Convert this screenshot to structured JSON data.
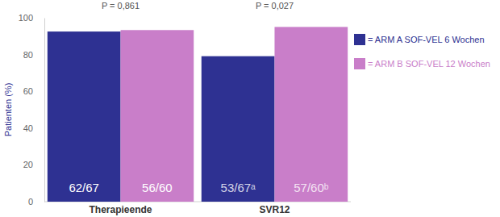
{
  "chart_data": {
    "type": "bar",
    "categories": [
      "Therapieende",
      "SVR12"
    ],
    "series": [
      {
        "name": "= ARM A SOF-VEL 6 Wochen",
        "color": "#2e3192",
        "values": [
          92.5,
          79.1
        ],
        "value_labels": [
          "62/67",
          "53/67ᵃ"
        ]
      },
      {
        "name": "= ARM B SOF-VEL 12 Wochen",
        "color": "#c97ec9",
        "values": [
          93.3,
          95.0
        ],
        "value_labels": [
          "56/60",
          "57/60ᵇ"
        ]
      }
    ],
    "y_label": "Patienten (%)",
    "ylim": [
      0,
      100
    ],
    "yticks": [
      0,
      20,
      40,
      60,
      80,
      100
    ],
    "annotations": [
      {
        "text": "P = 0,861",
        "x": "Therapieende"
      },
      {
        "text": "P = 0,027",
        "x": "SVR12"
      }
    ],
    "data_labels": true,
    "legend": "right",
    "grid": false
  }
}
